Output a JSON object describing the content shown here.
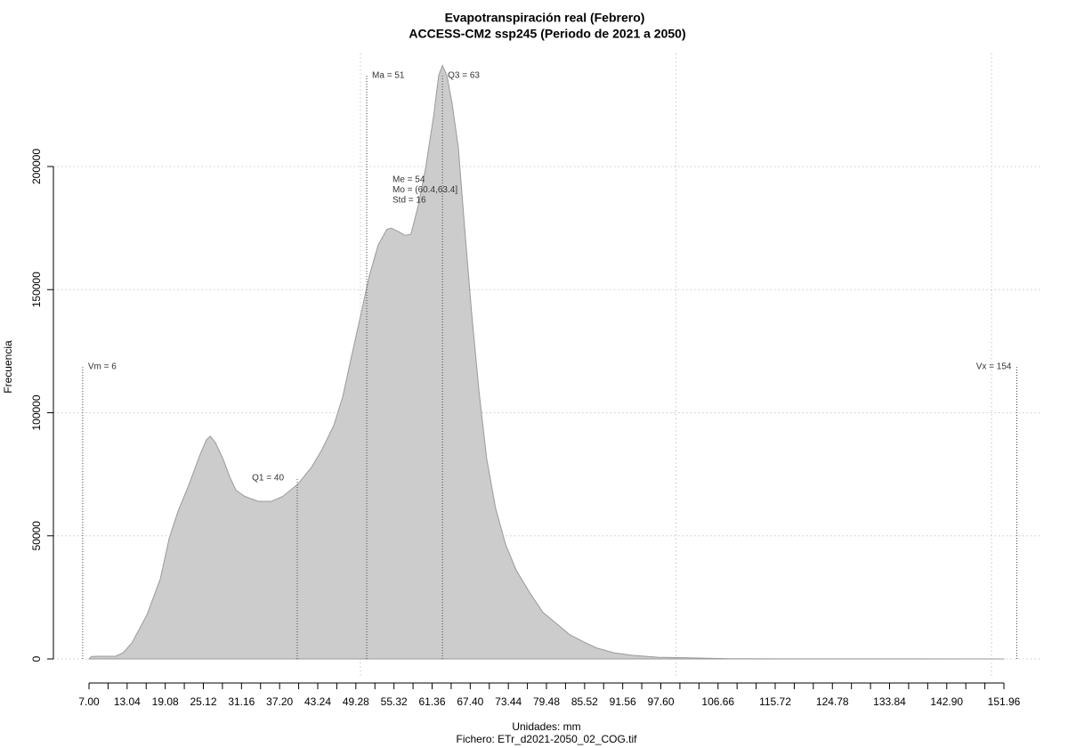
{
  "chart_data": {
    "type": "area",
    "title": "Evapotranspiración real (Febrero)",
    "subtitle": "ACCESS-CM2 ssp245 (Periodo de 2021 a 2050)",
    "xlabel": "Unidades: mm",
    "ylabel": "Frecuencia",
    "caption": "Fichero: ETr_d2021-2050_02_COG.tif",
    "color": "#cccccc",
    "x": [
      7.0,
      7.4,
      8.4,
      11.2,
      12.4,
      13.8,
      16.2,
      18.3,
      19.7,
      21.1,
      22.8,
      24.6,
      25.6,
      26.2,
      27.0,
      28.2,
      29.3,
      30.3,
      31.7,
      33.8,
      35.9,
      37.7,
      40.1,
      42.3,
      43.9,
      45.8,
      47.2,
      48.6,
      50.0,
      51.4,
      52.8,
      54.2,
      54.9,
      56.1,
      57.1,
      58.0,
      59.2,
      60.3,
      61.6,
      62.4,
      63.0,
      63.7,
      64.5,
      65.5,
      66.5,
      67.6,
      68.8,
      70.0,
      71.4,
      73.0,
      74.7,
      76.8,
      78.9,
      81.0,
      83.1,
      85.3,
      87.4,
      90.2,
      93.0,
      97.2,
      102.9,
      108.5,
      119.8,
      133.9,
      151.96
    ],
    "values": [
      0,
      1000,
      1100,
      1100,
      2500,
      6500,
      18000,
      32500,
      49000,
      60000,
      70500,
      83000,
      89000,
      90500,
      88000,
      81500,
      74000,
      68500,
      66000,
      64000,
      64000,
      66000,
      71000,
      78000,
      85000,
      95000,
      106500,
      123000,
      139000,
      155500,
      168000,
      174500,
      175000,
      173500,
      172000,
      172500,
      184500,
      199000,
      220500,
      237000,
      241000,
      237000,
      226000,
      208000,
      175500,
      141000,
      108500,
      81500,
      61500,
      46500,
      36000,
      27000,
      19000,
      14500,
      10000,
      7000,
      4500,
      2500,
      1500,
      700,
      400,
      100,
      50,
      20,
      0
    ],
    "xlim": [
      1.36,
      157.88
    ],
    "ylim": [
      -7233,
      245930
    ],
    "yticks": [
      0,
      50000,
      100000,
      150000,
      200000
    ],
    "xticks": [
      {
        "value": 7.0,
        "label": "7.00"
      },
      {
        "value": 13.04,
        "label": "13.04"
      },
      {
        "value": 19.08,
        "label": "19.08"
      },
      {
        "value": 25.12,
        "label": "25.12"
      },
      {
        "value": 31.16,
        "label": "31.16"
      },
      {
        "value": 37.2,
        "label": "37.20"
      },
      {
        "value": 43.24,
        "label": "43.24"
      },
      {
        "value": 49.28,
        "label": "49.28"
      },
      {
        "value": 55.32,
        "label": "55.32"
      },
      {
        "value": 61.36,
        "label": "61.36"
      },
      {
        "value": 67.4,
        "label": "67.40"
      },
      {
        "value": 73.44,
        "label": "73.44"
      },
      {
        "value": 79.48,
        "label": "79.48"
      },
      {
        "value": 85.52,
        "label": "85.52"
      },
      {
        "value": 91.56,
        "label": "91.56"
      },
      {
        "value": 97.6,
        "label": "97.60"
      },
      {
        "value": 106.66,
        "label": "106.66"
      },
      {
        "value": 115.72,
        "label": "115.72"
      },
      {
        "value": 124.78,
        "label": "124.78"
      },
      {
        "value": 133.84,
        "label": "133.84"
      },
      {
        "value": 142.9,
        "label": "142.90"
      },
      {
        "value": 151.96,
        "label": "151.96"
      }
    ],
    "xminorticks": [
      10.02,
      16.06,
      22.1,
      28.14,
      34.18,
      40.22,
      46.26,
      52.3,
      58.34,
      64.38,
      70.42,
      76.46,
      82.5,
      88.54,
      94.58,
      100.62,
      103.64,
      109.68,
      112.7,
      118.74,
      121.76,
      127.8,
      130.82,
      136.86,
      139.88,
      145.92,
      148.94
    ],
    "xgrid": [
      50,
      100,
      150
    ],
    "grid": true,
    "annotations": [
      {
        "text": "Vm = 6",
        "x": 6,
        "y": 118600
      },
      {
        "text": "Q1 = 40",
        "x": 40,
        "y": 73400
      },
      {
        "text": "Ma = 51",
        "x": 51,
        "y": 236900
      },
      {
        "text": "Q3 = 63",
        "x": 63,
        "y": 236900
      },
      {
        "text": "Vx = 154",
        "x": 154,
        "y": 118600
      }
    ],
    "stats": [
      "Me = 54",
      "Mo = (60.4,63.4]",
      "Std = 16"
    ]
  }
}
